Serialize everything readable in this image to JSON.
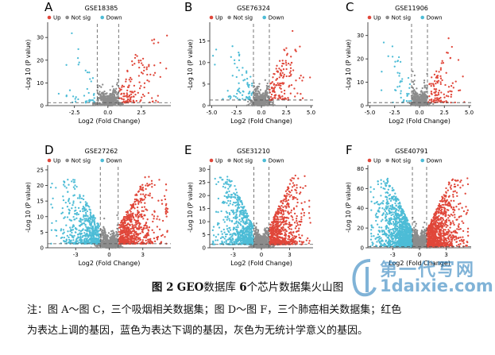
{
  "figure": {
    "caption_bold_prefix": "图 2",
    "caption_bold_db": "GEO",
    "caption_mid1": "数据库",
    "caption_bold_num": "6",
    "caption_mid2": "个芯片数据集火山图",
    "note_line1": "注：图 A～图 C，三个吸烟相关数据集；图 D～图 F，三个肺癌相关数据集；红色",
    "note_line2": "为表达上调的基因，蓝色为表达下调的基因，灰色为无统计学意义的基因。",
    "watermark_line1": "第一代写网",
    "watermark_line2": "1daixie.com"
  },
  "colors": {
    "up": "#e0473a",
    "notsig": "#8c8c8c",
    "down": "#4dbcd6"
  },
  "chart_data": [
    {
      "type": "scatter",
      "panel": "A",
      "title": "GSE18385",
      "legend": [
        "Up",
        "Not sig",
        "Down"
      ],
      "xlabel": "Log2 (Fold Change)",
      "ylabel": "-Log 10 (P value)",
      "xlim": [
        -4.5,
        4.7
      ],
      "ylim": [
        0,
        36
      ],
      "xticks": [
        -2.5,
        0.0,
        2.5
      ],
      "yticks": [
        0,
        10,
        20,
        30
      ],
      "fc_cut": 0.8,
      "p_cut": 1.3,
      "n_up": 130,
      "n_down": 40,
      "n_ns": 450
    },
    {
      "type": "scatter",
      "panel": "B",
      "title": "GSE76324",
      "legend": [
        "Up",
        "Not sig",
        "Down"
      ],
      "xlabel": "Log2 (Fold Change)",
      "ylabel": "-Log 10 (P value)",
      "xlim": [
        -5.2,
        5.2
      ],
      "ylim": [
        0,
        19
      ],
      "xticks": [
        -5.0,
        -2.5,
        0.0,
        2.5,
        5.0
      ],
      "yticks": [
        0,
        5,
        10,
        15
      ],
      "fc_cut": 0.8,
      "p_cut": 1.3,
      "n_up": 140,
      "n_down": 70,
      "n_ns": 450
    },
    {
      "type": "scatter",
      "panel": "C",
      "title": "GSE11906",
      "legend": [
        "Up",
        "Not sig",
        "Down"
      ],
      "xlabel": "Log2 (Fold Change)",
      "ylabel": "-Log 10 (P value)",
      "xlim": [
        -5.2,
        5.2
      ],
      "ylim": [
        0,
        35
      ],
      "xticks": [
        -5.0,
        -2.5,
        0.0,
        2.5,
        5.0
      ],
      "yticks": [
        0,
        10,
        20,
        30
      ],
      "fc_cut": 0.8,
      "p_cut": 1.3,
      "n_up": 110,
      "n_down": 40,
      "n_ns": 450
    },
    {
      "type": "scatter",
      "panel": "D",
      "title": "GSE27262",
      "legend": [
        "Up",
        "Not sig",
        "Down"
      ],
      "xlabel": "Log2 (Fold Change)",
      "ylabel": "-Log 10 (P value)",
      "xlim": [
        -5.5,
        5.5
      ],
      "ylim": [
        0,
        26
      ],
      "xticks": [
        -3,
        0,
        3
      ],
      "yticks": [
        0,
        5,
        10,
        15,
        20,
        25
      ],
      "fc_cut": 0.8,
      "p_cut": 1.3,
      "n_up": 650,
      "n_down": 550,
      "n_ns": 700
    },
    {
      "type": "scatter",
      "panel": "E",
      "title": "GSE31210",
      "legend": [
        "Up",
        "Not sig",
        "Down"
      ],
      "xlabel": "Log2 (Fold Change)",
      "ylabel": "-Log 10 (P value)",
      "xlim": [
        -5.5,
        5.5
      ],
      "ylim": [
        0,
        31
      ],
      "xticks": [
        -3,
        0,
        3
      ],
      "yticks": [
        0,
        5,
        10,
        15,
        20,
        25,
        30
      ],
      "fc_cut": 0.8,
      "p_cut": 1.3,
      "n_up": 650,
      "n_down": 650,
      "n_ns": 700
    },
    {
      "type": "scatter",
      "panel": "F",
      "title": "GSE40791",
      "legend": [
        "Up",
        "Not sig",
        "Down"
      ],
      "xlabel": "Log2 (Fold Change)",
      "ylabel": "-Log 10 (P value)",
      "xlim": [
        -5.8,
        5.8
      ],
      "ylim": [
        0,
        82
      ],
      "xticks": [
        -3,
        0,
        3
      ],
      "yticks": [
        0,
        20,
        40,
        60,
        80
      ],
      "fc_cut": 0.8,
      "p_cut": 1.3,
      "n_up": 900,
      "n_down": 1100,
      "n_ns": 800
    }
  ]
}
